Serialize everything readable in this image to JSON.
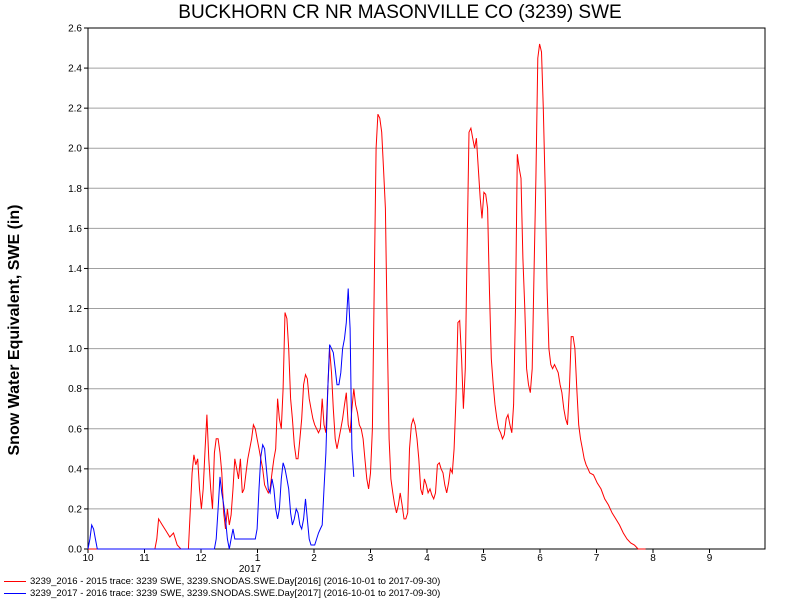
{
  "chart_data": {
    "type": "line",
    "title": "BUCKHORN CR NR MASONVILLE CO (3239) SWE",
    "ylabel": "Snow Water Equivalent, SWE (in)",
    "xlabel": "",
    "ylim": [
      0,
      2.6
    ],
    "y_ticks": [
      "0.0",
      "0.2",
      "0.4",
      "0.6",
      "0.8",
      "1.0",
      "1.2",
      "1.4",
      "1.6",
      "1.8",
      "2.0",
      "2.2",
      "2.4",
      "2.6"
    ],
    "x_ticks": [
      "10",
      "11",
      "12",
      "1",
      "2",
      "3",
      "4",
      "5",
      "6",
      "7",
      "8",
      "9"
    ],
    "x_year_label": "2017",
    "grid": true,
    "series": [
      {
        "name": "3239_2016 - 2015 trace: 3239 SWE, 3239.SNODAS.SWE.Day[2016] (2016-10-01 to 2017-09-30)",
        "color": "#ff0000",
        "x_unit": "days since Oct 1",
        "points": [
          [
            0,
            0
          ],
          [
            36,
            0
          ],
          [
            37,
            0.05
          ],
          [
            38,
            0.15
          ],
          [
            40,
            0.12
          ],
          [
            42,
            0.09
          ],
          [
            44,
            0.06
          ],
          [
            46,
            0.08
          ],
          [
            48,
            0.02
          ],
          [
            50,
            0
          ],
          [
            54,
            0
          ],
          [
            56,
            0.38
          ],
          [
            57,
            0.47
          ],
          [
            58,
            0.42
          ],
          [
            59,
            0.45
          ],
          [
            60,
            0.3
          ],
          [
            61,
            0.2
          ],
          [
            62,
            0.3
          ],
          [
            63,
            0.5
          ],
          [
            64,
            0.67
          ],
          [
            65,
            0.45
          ],
          [
            66,
            0.3
          ],
          [
            67,
            0.2
          ],
          [
            68,
            0.48
          ],
          [
            69,
            0.55
          ],
          [
            70,
            0.55
          ],
          [
            71,
            0.48
          ],
          [
            72,
            0.38
          ],
          [
            73,
            0.18
          ],
          [
            74,
            0.1
          ],
          [
            75,
            0.2
          ],
          [
            76,
            0.12
          ],
          [
            77,
            0.17
          ],
          [
            78,
            0.3
          ],
          [
            79,
            0.45
          ],
          [
            80,
            0.4
          ],
          [
            81,
            0.35
          ],
          [
            82,
            0.45
          ],
          [
            83,
            0.28
          ],
          [
            84,
            0.3
          ],
          [
            85,
            0.38
          ],
          [
            86,
            0.45
          ],
          [
            87,
            0.5
          ],
          [
            88,
            0.55
          ],
          [
            89,
            0.62
          ],
          [
            90,
            0.6
          ],
          [
            91,
            0.55
          ],
          [
            92,
            0.5
          ],
          [
            93,
            0.45
          ],
          [
            94,
            0.4
          ],
          [
            95,
            0.32
          ],
          [
            96,
            0.3
          ],
          [
            97,
            0.28
          ],
          [
            98,
            0.3
          ],
          [
            99,
            0.38
          ],
          [
            100,
            0.45
          ],
          [
            101,
            0.5
          ],
          [
            102,
            0.75
          ],
          [
            103,
            0.65
          ],
          [
            104,
            0.6
          ],
          [
            105,
            0.8
          ],
          [
            106,
            1.18
          ],
          [
            107,
            1.15
          ],
          [
            108,
            1.0
          ],
          [
            109,
            0.75
          ],
          [
            110,
            0.65
          ],
          [
            111,
            0.52
          ],
          [
            112,
            0.45
          ],
          [
            113,
            0.45
          ],
          [
            114,
            0.55
          ],
          [
            115,
            0.65
          ],
          [
            116,
            0.82
          ],
          [
            117,
            0.87
          ],
          [
            118,
            0.85
          ],
          [
            119,
            0.75
          ],
          [
            120,
            0.7
          ],
          [
            121,
            0.65
          ],
          [
            122,
            0.62
          ],
          [
            123,
            0.6
          ],
          [
            124,
            0.58
          ],
          [
            125,
            0.6
          ],
          [
            126,
            0.75
          ],
          [
            127,
            0.62
          ],
          [
            128,
            0.58
          ],
          [
            129,
            0.8
          ],
          [
            130,
            1.0
          ],
          [
            131,
            0.88
          ],
          [
            132,
            0.7
          ],
          [
            133,
            0.55
          ],
          [
            134,
            0.5
          ],
          [
            135,
            0.55
          ],
          [
            136,
            0.6
          ],
          [
            137,
            0.65
          ],
          [
            138,
            0.72
          ],
          [
            139,
            0.78
          ],
          [
            140,
            0.62
          ],
          [
            141,
            0.58
          ],
          [
            142,
            0.7
          ],
          [
            143,
            0.8
          ],
          [
            144,
            0.72
          ],
          [
            145,
            0.68
          ],
          [
            146,
            0.62
          ],
          [
            147,
            0.6
          ],
          [
            148,
            0.55
          ],
          [
            149,
            0.45
          ],
          [
            150,
            0.35
          ],
          [
            151,
            0.3
          ],
          [
            152,
            0.38
          ],
          [
            153,
            0.6
          ],
          [
            154,
            1.3
          ],
          [
            155,
            2.0
          ],
          [
            156,
            2.17
          ],
          [
            157,
            2.15
          ],
          [
            158,
            2.08
          ],
          [
            159,
            1.9
          ],
          [
            160,
            1.7
          ],
          [
            161,
            1.1
          ],
          [
            162,
            0.55
          ],
          [
            163,
            0.35
          ],
          [
            164,
            0.28
          ],
          [
            165,
            0.22
          ],
          [
            166,
            0.18
          ],
          [
            167,
            0.22
          ],
          [
            168,
            0.28
          ],
          [
            169,
            0.22
          ],
          [
            170,
            0.15
          ],
          [
            171,
            0.15
          ],
          [
            172,
            0.18
          ],
          [
            173,
            0.5
          ],
          [
            174,
            0.62
          ],
          [
            175,
            0.65
          ],
          [
            176,
            0.62
          ],
          [
            177,
            0.55
          ],
          [
            178,
            0.45
          ],
          [
            179,
            0.3
          ],
          [
            180,
            0.27
          ],
          [
            181,
            0.35
          ],
          [
            182,
            0.32
          ],
          [
            183,
            0.28
          ],
          [
            184,
            0.3
          ],
          [
            185,
            0.27
          ],
          [
            186,
            0.25
          ],
          [
            187,
            0.28
          ],
          [
            188,
            0.42
          ],
          [
            189,
            0.43
          ],
          [
            190,
            0.4
          ],
          [
            191,
            0.38
          ],
          [
            192,
            0.32
          ],
          [
            193,
            0.28
          ],
          [
            194,
            0.33
          ],
          [
            195,
            0.4
          ],
          [
            196,
            0.38
          ],
          [
            197,
            0.5
          ],
          [
            198,
            0.75
          ],
          [
            199,
            1.13
          ],
          [
            200,
            1.14
          ],
          [
            201,
            0.95
          ],
          [
            202,
            0.7
          ],
          [
            203,
            0.9
          ],
          [
            204,
            1.5
          ],
          [
            205,
            2.08
          ],
          [
            206,
            2.1
          ],
          [
            207,
            2.05
          ],
          [
            208,
            2.0
          ],
          [
            209,
            2.05
          ],
          [
            210,
            1.9
          ],
          [
            211,
            1.75
          ],
          [
            212,
            1.65
          ],
          [
            213,
            1.78
          ],
          [
            214,
            1.77
          ],
          [
            215,
            1.7
          ],
          [
            216,
            1.3
          ],
          [
            217,
            0.95
          ],
          [
            218,
            0.82
          ],
          [
            219,
            0.72
          ],
          [
            220,
            0.65
          ],
          [
            221,
            0.6
          ],
          [
            222,
            0.58
          ],
          [
            223,
            0.55
          ],
          [
            224,
            0.57
          ],
          [
            225,
            0.65
          ],
          [
            226,
            0.67
          ],
          [
            227,
            0.62
          ],
          [
            228,
            0.58
          ],
          [
            229,
            0.72
          ],
          [
            230,
            1.2
          ],
          [
            231,
            1.97
          ],
          [
            232,
            1.9
          ],
          [
            233,
            1.85
          ],
          [
            234,
            1.45
          ],
          [
            235,
            1.2
          ],
          [
            236,
            0.9
          ],
          [
            237,
            0.82
          ],
          [
            238,
            0.78
          ],
          [
            239,
            0.9
          ],
          [
            240,
            1.4
          ],
          [
            241,
            1.85
          ],
          [
            242,
            2.45
          ],
          [
            243,
            2.52
          ],
          [
            244,
            2.48
          ],
          [
            245,
            2.2
          ],
          [
            246,
            1.8
          ],
          [
            247,
            1.3
          ],
          [
            248,
            1.0
          ],
          [
            249,
            0.92
          ],
          [
            250,
            0.9
          ],
          [
            251,
            0.92
          ],
          [
            252,
            0.9
          ],
          [
            253,
            0.88
          ],
          [
            254,
            0.82
          ],
          [
            255,
            0.78
          ],
          [
            256,
            0.7
          ],
          [
            257,
            0.65
          ],
          [
            258,
            0.62
          ],
          [
            259,
            0.8
          ],
          [
            260,
            1.06
          ],
          [
            261,
            1.06
          ],
          [
            262,
            1.0
          ],
          [
            263,
            0.8
          ],
          [
            264,
            0.62
          ],
          [
            265,
            0.55
          ],
          [
            266,
            0.5
          ],
          [
            267,
            0.45
          ],
          [
            268,
            0.42
          ],
          [
            269,
            0.4
          ],
          [
            270,
            0.38
          ],
          [
            272,
            0.37
          ],
          [
            274,
            0.33
          ],
          [
            276,
            0.3
          ],
          [
            278,
            0.25
          ],
          [
            280,
            0.22
          ],
          [
            282,
            0.18
          ],
          [
            284,
            0.15
          ],
          [
            286,
            0.12
          ],
          [
            288,
            0.08
          ],
          [
            290,
            0.05
          ],
          [
            292,
            0.03
          ],
          [
            294,
            0.02
          ],
          [
            296,
            0
          ],
          [
            300,
            0
          ]
        ]
      },
      {
        "name": "3239_2017 - 2016 trace: 3239 SWE, 3239.SNODAS.SWE.Day[2017] (2016-10-01 to 2017-09-30)",
        "color": "#0000ff",
        "x_unit": "days since Oct 1",
        "points": [
          [
            0,
            0
          ],
          [
            1,
            0.05
          ],
          [
            2,
            0.12
          ],
          [
            3,
            0.1
          ],
          [
            4,
            0.05
          ],
          [
            5,
            0
          ],
          [
            68,
            0
          ],
          [
            69,
            0.05
          ],
          [
            70,
            0.2
          ],
          [
            71,
            0.36
          ],
          [
            72,
            0.28
          ],
          [
            73,
            0.22
          ],
          [
            74,
            0.15
          ],
          [
            75,
            0.05
          ],
          [
            76,
            0
          ],
          [
            77,
            0.05
          ],
          [
            78,
            0.1
          ],
          [
            79,
            0.05
          ],
          [
            80,
            0.05
          ],
          [
            81,
            0.05
          ],
          [
            82,
            0.05
          ],
          [
            83,
            0.05
          ],
          [
            84,
            0.05
          ],
          [
            85,
            0.05
          ],
          [
            86,
            0.05
          ],
          [
            87,
            0.05
          ],
          [
            88,
            0.05
          ],
          [
            89,
            0.05
          ],
          [
            90,
            0.05
          ],
          [
            91,
            0.1
          ],
          [
            92,
            0.3
          ],
          [
            93,
            0.46
          ],
          [
            94,
            0.52
          ],
          [
            95,
            0.5
          ],
          [
            96,
            0.4
          ],
          [
            97,
            0.3
          ],
          [
            98,
            0.28
          ],
          [
            99,
            0.35
          ],
          [
            100,
            0.3
          ],
          [
            101,
            0.2
          ],
          [
            102,
            0.15
          ],
          [
            103,
            0.2
          ],
          [
            104,
            0.35
          ],
          [
            105,
            0.43
          ],
          [
            106,
            0.4
          ],
          [
            107,
            0.35
          ],
          [
            108,
            0.3
          ],
          [
            109,
            0.18
          ],
          [
            110,
            0.12
          ],
          [
            111,
            0.15
          ],
          [
            112,
            0.2
          ],
          [
            113,
            0.18
          ],
          [
            114,
            0.12
          ],
          [
            115,
            0.1
          ],
          [
            116,
            0.15
          ],
          [
            117,
            0.25
          ],
          [
            118,
            0.15
          ],
          [
            119,
            0.05
          ],
          [
            120,
            0.02
          ],
          [
            121,
            0.02
          ],
          [
            122,
            0.02
          ],
          [
            123,
            0.05
          ],
          [
            124,
            0.08
          ],
          [
            125,
            0.1
          ],
          [
            126,
            0.12
          ],
          [
            127,
            0.3
          ],
          [
            128,
            0.48
          ],
          [
            129,
            0.8
          ],
          [
            130,
            1.02
          ],
          [
            131,
            1.0
          ],
          [
            132,
            0.98
          ],
          [
            133,
            0.9
          ],
          [
            134,
            0.82
          ],
          [
            135,
            0.82
          ],
          [
            136,
            0.88
          ],
          [
            137,
            1.0
          ],
          [
            138,
            1.05
          ],
          [
            139,
            1.13
          ],
          [
            140,
            1.3
          ],
          [
            141,
            1.1
          ],
          [
            142,
            0.5
          ],
          [
            143,
            0.36
          ]
        ]
      }
    ]
  }
}
